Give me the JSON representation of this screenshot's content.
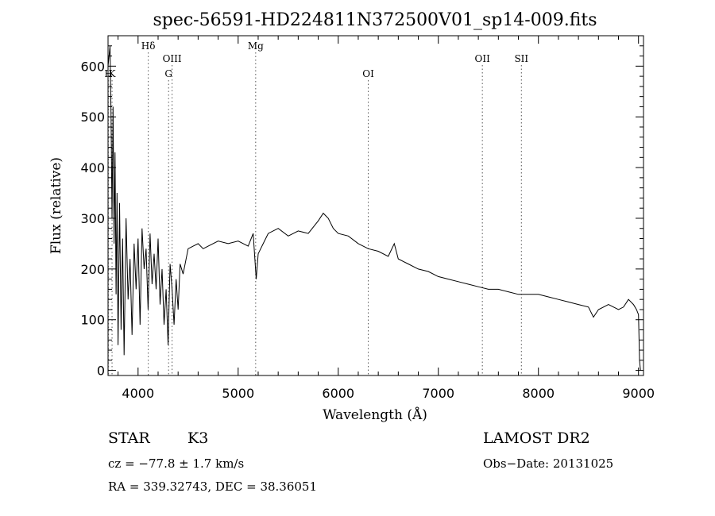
{
  "chart_data": {
    "type": "line",
    "title": "spec-56591-HD224811N372500V01_sp14-009.fits",
    "xlabel": "Wavelength (Å)",
    "ylabel": "Flux (relative)",
    "xlim": [
      3700,
      9050
    ],
    "ylim": [
      -10,
      660
    ],
    "x_ticks": [
      4000,
      5000,
      6000,
      7000,
      8000,
      9000
    ],
    "y_ticks": [
      0,
      100,
      200,
      300,
      400,
      500,
      600
    ],
    "grid": false,
    "legend": "none",
    "line_color": "#000000",
    "series": [
      {
        "x": [
          3700,
          3720,
          3730,
          3740,
          3750,
          3760,
          3770,
          3780,
          3790,
          3800,
          3815,
          3830,
          3845,
          3860,
          3880,
          3900,
          3920,
          3940,
          3960,
          3980,
          4000,
          4020,
          4040,
          4060,
          4080,
          4100,
          4120,
          4140,
          4160,
          4180,
          4200,
          4220,
          4240,
          4260,
          4280,
          4300,
          4310,
          4320,
          4340,
          4360,
          4380,
          4400,
          4420,
          4450,
          4500,
          4550,
          4600,
          4650,
          4700,
          4800,
          4900,
          5000,
          5100,
          5150,
          5180,
          5200,
          5250,
          5300,
          5400,
          5500,
          5600,
          5700,
          5800,
          5850,
          5900,
          5950,
          6000,
          6100,
          6200,
          6300,
          6400,
          6500,
          6560,
          6600,
          6700,
          6800,
          6900,
          7000,
          7100,
          7200,
          7300,
          7400,
          7500,
          7600,
          7700,
          7800,
          7900,
          8000,
          8100,
          8200,
          8300,
          8400,
          8500,
          8550,
          8600,
          8700,
          8800,
          8850,
          8900,
          8950,
          8980,
          9000,
          9010,
          9020
        ],
        "y": [
          600,
          640,
          500,
          300,
          520,
          250,
          430,
          150,
          350,
          50,
          330,
          80,
          260,
          30,
          300,
          140,
          220,
          70,
          250,
          160,
          260,
          90,
          280,
          200,
          240,
          120,
          270,
          170,
          230,
          160,
          260,
          130,
          200,
          90,
          160,
          50,
          130,
          210,
          160,
          90,
          180,
          120,
          210,
          190,
          240,
          245,
          250,
          240,
          245,
          255,
          250,
          255,
          245,
          270,
          180,
          230,
          250,
          270,
          280,
          265,
          275,
          270,
          295,
          310,
          300,
          280,
          270,
          265,
          250,
          240,
          235,
          225,
          250,
          220,
          210,
          200,
          195,
          185,
          180,
          175,
          170,
          165,
          160,
          160,
          155,
          150,
          150,
          150,
          145,
          140,
          135,
          130,
          125,
          105,
          120,
          130,
          120,
          125,
          140,
          130,
          120,
          110,
          20,
          0
        ]
      }
    ],
    "line_annotations": [
      {
        "label": "H",
        "x": 3705,
        "row": "lower"
      },
      {
        "label": "K",
        "x": 3740,
        "row": "lower"
      },
      {
        "label": "Hδ",
        "x": 4102,
        "row": "top"
      },
      {
        "label": "G",
        "x": 4305,
        "row": "lower"
      },
      {
        "label": "OIII",
        "x": 4340,
        "row": "middle"
      },
      {
        "label": "Mg",
        "x": 5175,
        "row": "top"
      },
      {
        "label": "OI",
        "x": 6300,
        "row": "lower"
      },
      {
        "label": "OII",
        "x": 7440,
        "row": "middle"
      },
      {
        "label": "SII",
        "x": 7830,
        "row": "middle"
      }
    ]
  },
  "info": {
    "class_label": "STAR",
    "subclass": "K3",
    "cz": "cz = −77.8 ± 1.7 km/s",
    "radec": "RA = 339.32743, DEC =  38.36051",
    "survey": "LAMOST DR2",
    "obs_date": "Obs−Date: 20131025"
  }
}
